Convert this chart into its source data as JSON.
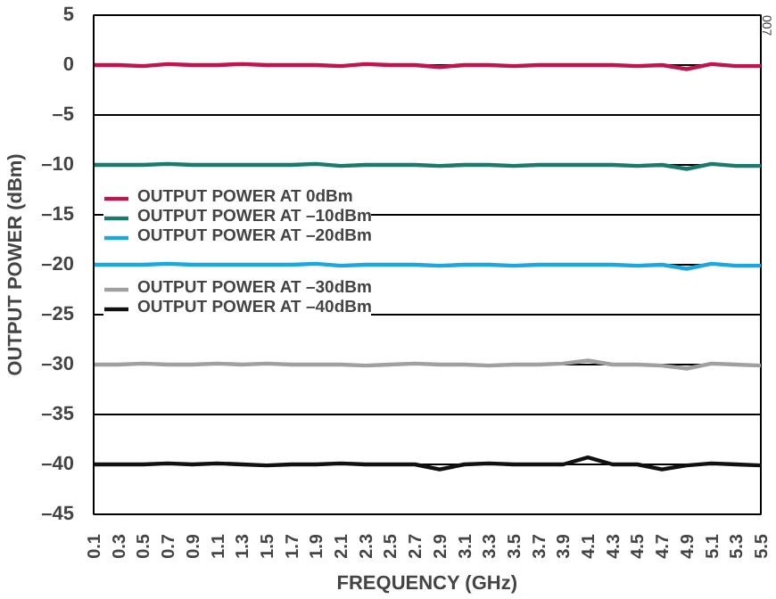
{
  "chart_data": {
    "type": "line",
    "xlabel": "FREQUENCY (GHz)",
    "ylabel": "OUTPUT POWER (dBm)",
    "x": [
      0.1,
      0.3,
      0.5,
      0.7,
      0.9,
      1.1,
      1.3,
      1.5,
      1.7,
      1.9,
      2.1,
      2.3,
      2.5,
      2.7,
      2.9,
      3.1,
      3.3,
      3.5,
      3.7,
      3.9,
      4.1,
      4.3,
      4.5,
      4.7,
      4.9,
      5.1,
      5.3,
      5.5
    ],
    "series": [
      {
        "name": "OUTPUT POWER AT 0dBm",
        "color": "#c0144c",
        "values": [
          0,
          0,
          -0.1,
          0.1,
          0,
          0,
          0.1,
          0,
          0,
          0,
          -0.1,
          0.1,
          0,
          0,
          -0.2,
          0,
          0,
          -0.1,
          0,
          0,
          0,
          0,
          -0.1,
          0,
          -0.4,
          0.1,
          -0.1,
          -0.1
        ]
      },
      {
        "name": "OUTPUT POWER AT –10dBm",
        "color": "#1a7a6c",
        "values": [
          -10,
          -10,
          -10,
          -9.9,
          -10,
          -10,
          -10,
          -10,
          -10,
          -9.9,
          -10.1,
          -10,
          -10,
          -10,
          -10.1,
          -10,
          -10,
          -10.1,
          -10,
          -10,
          -10,
          -10,
          -10.1,
          -10,
          -10.4,
          -9.9,
          -10.1,
          -10.1
        ]
      },
      {
        "name": "OUTPUT POWER AT –20dBm",
        "color": "#1ba8e0",
        "values": [
          -20,
          -20,
          -20,
          -19.9,
          -20,
          -20,
          -20,
          -20,
          -20,
          -19.9,
          -20.1,
          -20,
          -20,
          -20,
          -20.1,
          -20,
          -20,
          -20.1,
          -20,
          -20,
          -20,
          -20,
          -20.1,
          -20,
          -20.4,
          -19.9,
          -20.1,
          -20.1
        ]
      },
      {
        "name": "OUTPUT POWER AT –30dBm",
        "color": "#a0a0a0",
        "values": [
          -30,
          -30,
          -29.9,
          -30,
          -30,
          -29.9,
          -30,
          -29.9,
          -30,
          -30,
          -30,
          -30.1,
          -30,
          -29.9,
          -30,
          -30,
          -30.1,
          -30,
          -30,
          -29.9,
          -29.6,
          -30,
          -30,
          -30.1,
          -30.4,
          -29.9,
          -30,
          -30.1
        ]
      },
      {
        "name": "OUTPUT POWER AT –40dBm",
        "color": "#111111",
        "values": [
          -40,
          -40,
          -40,
          -39.9,
          -40,
          -39.9,
          -40,
          -40.1,
          -40,
          -40,
          -39.9,
          -40,
          -40,
          -40,
          -40.5,
          -40,
          -39.9,
          -40,
          -40,
          -40,
          -39.3,
          -40,
          -40,
          -40.5,
          -40.1,
          -39.9,
          -40,
          -40.1
        ]
      }
    ],
    "xlim": [
      0.1,
      5.5
    ],
    "ylim": [
      -45,
      5
    ],
    "xticks": [
      0.1,
      0.3,
      0.5,
      0.7,
      0.9,
      1.1,
      1.3,
      1.5,
      1.7,
      1.9,
      2.1,
      2.3,
      2.5,
      2.7,
      2.9,
      3.1,
      3.3,
      3.5,
      3.7,
      3.9,
      4.1,
      4.3,
      4.5,
      4.7,
      4.9,
      5.1,
      5.3,
      5.5
    ],
    "yticks": [
      {
        "value": -45,
        "label": "–45"
      },
      {
        "value": -40,
        "label": "–40"
      },
      {
        "value": -35,
        "label": "–35"
      },
      {
        "value": -30,
        "label": "–30"
      },
      {
        "value": -25,
        "label": "–25"
      },
      {
        "value": -20,
        "label": "–20"
      },
      {
        "value": -15,
        "label": "–15"
      },
      {
        "value": -10,
        "label": "–10"
      },
      {
        "value": -5,
        "label": "–5"
      },
      0,
      5
    ],
    "grid": "y",
    "legend": "left",
    "line_style": "solid",
    "marker": "none",
    "annotations": [
      "007"
    ]
  }
}
